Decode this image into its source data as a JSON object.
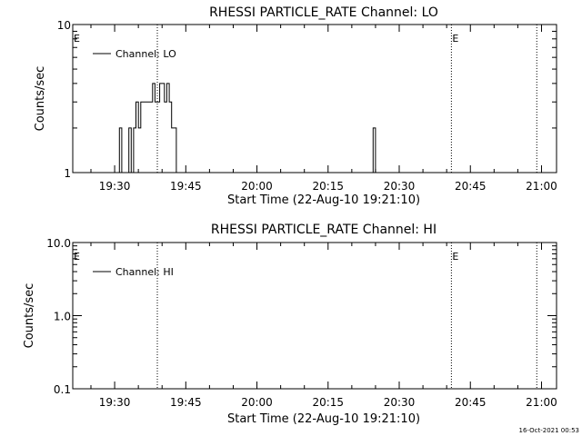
{
  "chart_data": [
    {
      "type": "line",
      "title": "RHESSI PARTICLE_RATE Channel: LO",
      "xlabel": "Start Time (22-Aug-10 19:21:10)",
      "ylabel": "Counts/sec",
      "yscale": "log",
      "ylim": [
        1,
        10
      ],
      "y_ticks": [
        1,
        10
      ],
      "y_tick_labels": [
        "1",
        "10"
      ],
      "xlim_minutes_since_19_21_10": [
        0,
        102
      ],
      "x_tick_labels": [
        "19:30",
        "19:45",
        "20:00",
        "20:15",
        "20:30",
        "20:45",
        "21:00"
      ],
      "x_tick_times": [
        "19:30",
        "19:45",
        "20:00",
        "20:15",
        "20:30",
        "20:45",
        "21:00"
      ],
      "legend": {
        "position": "top-left",
        "entries": [
          "Channel: LO"
        ]
      },
      "markers": [
        {
          "time": "19:39",
          "label": ""
        },
        {
          "time": "20:41",
          "label": "E"
        },
        {
          "time": "20:59",
          "label": ""
        }
      ],
      "left_marker_label": "E",
      "series": [
        {
          "name": "Channel: LO",
          "x": [
            "19:27",
            "19:27.5",
            "19:28",
            "19:28.5",
            "19:29",
            "19:29.5",
            "19:30",
            "19:30.5",
            "19:31",
            "19:31.5",
            "19:32",
            "19:32.5",
            "19:33",
            "19:33.5",
            "19:34",
            "19:34.5",
            "19:35",
            "19:35.5",
            "19:36",
            "19:36.5",
            "19:37",
            "19:37.5",
            "19:38",
            "19:38.5",
            "19:39",
            "19:39.5",
            "19:40",
            "19:40.5",
            "19:41",
            "19:41.5",
            "19:42",
            "19:42.5",
            "19:43",
            "20:24",
            "20:24.5",
            "20:25"
          ],
          "values": [
            1,
            1,
            1,
            1,
            1,
            1,
            1,
            1,
            2,
            1,
            1,
            1,
            2,
            1,
            2,
            3,
            2,
            3,
            3,
            3,
            3,
            3,
            4,
            3,
            3,
            4,
            4,
            3,
            4,
            3,
            2,
            2,
            1,
            1,
            2,
            1
          ]
        }
      ]
    },
    {
      "type": "line",
      "title": "RHESSI PARTICLE_RATE Channel: HI",
      "xlabel": "Start Time (22-Aug-10 19:21:10)",
      "ylabel": "Counts/sec",
      "yscale": "log",
      "ylim": [
        0.1,
        10
      ],
      "y_ticks": [
        0.1,
        1,
        10
      ],
      "y_tick_labels": [
        "0.1",
        "1.0",
        "10.0"
      ],
      "x_tick_labels": [
        "19:30",
        "19:45",
        "20:00",
        "20:15",
        "20:30",
        "20:45",
        "21:00"
      ],
      "x_tick_times": [
        "19:30",
        "19:45",
        "20:00",
        "20:15",
        "20:30",
        "20:45",
        "21:00"
      ],
      "legend": {
        "position": "top-left",
        "entries": [
          "Channel: HI"
        ]
      },
      "markers": [
        {
          "time": "19:39",
          "label": ""
        },
        {
          "time": "20:41",
          "label": "E"
        },
        {
          "time": "20:59",
          "label": ""
        }
      ],
      "left_marker_label": "E",
      "series": [
        {
          "name": "Channel: HI",
          "x": [],
          "values": []
        }
      ]
    }
  ],
  "footer": {
    "timestamp": "16-Oct-2021 00:53"
  }
}
